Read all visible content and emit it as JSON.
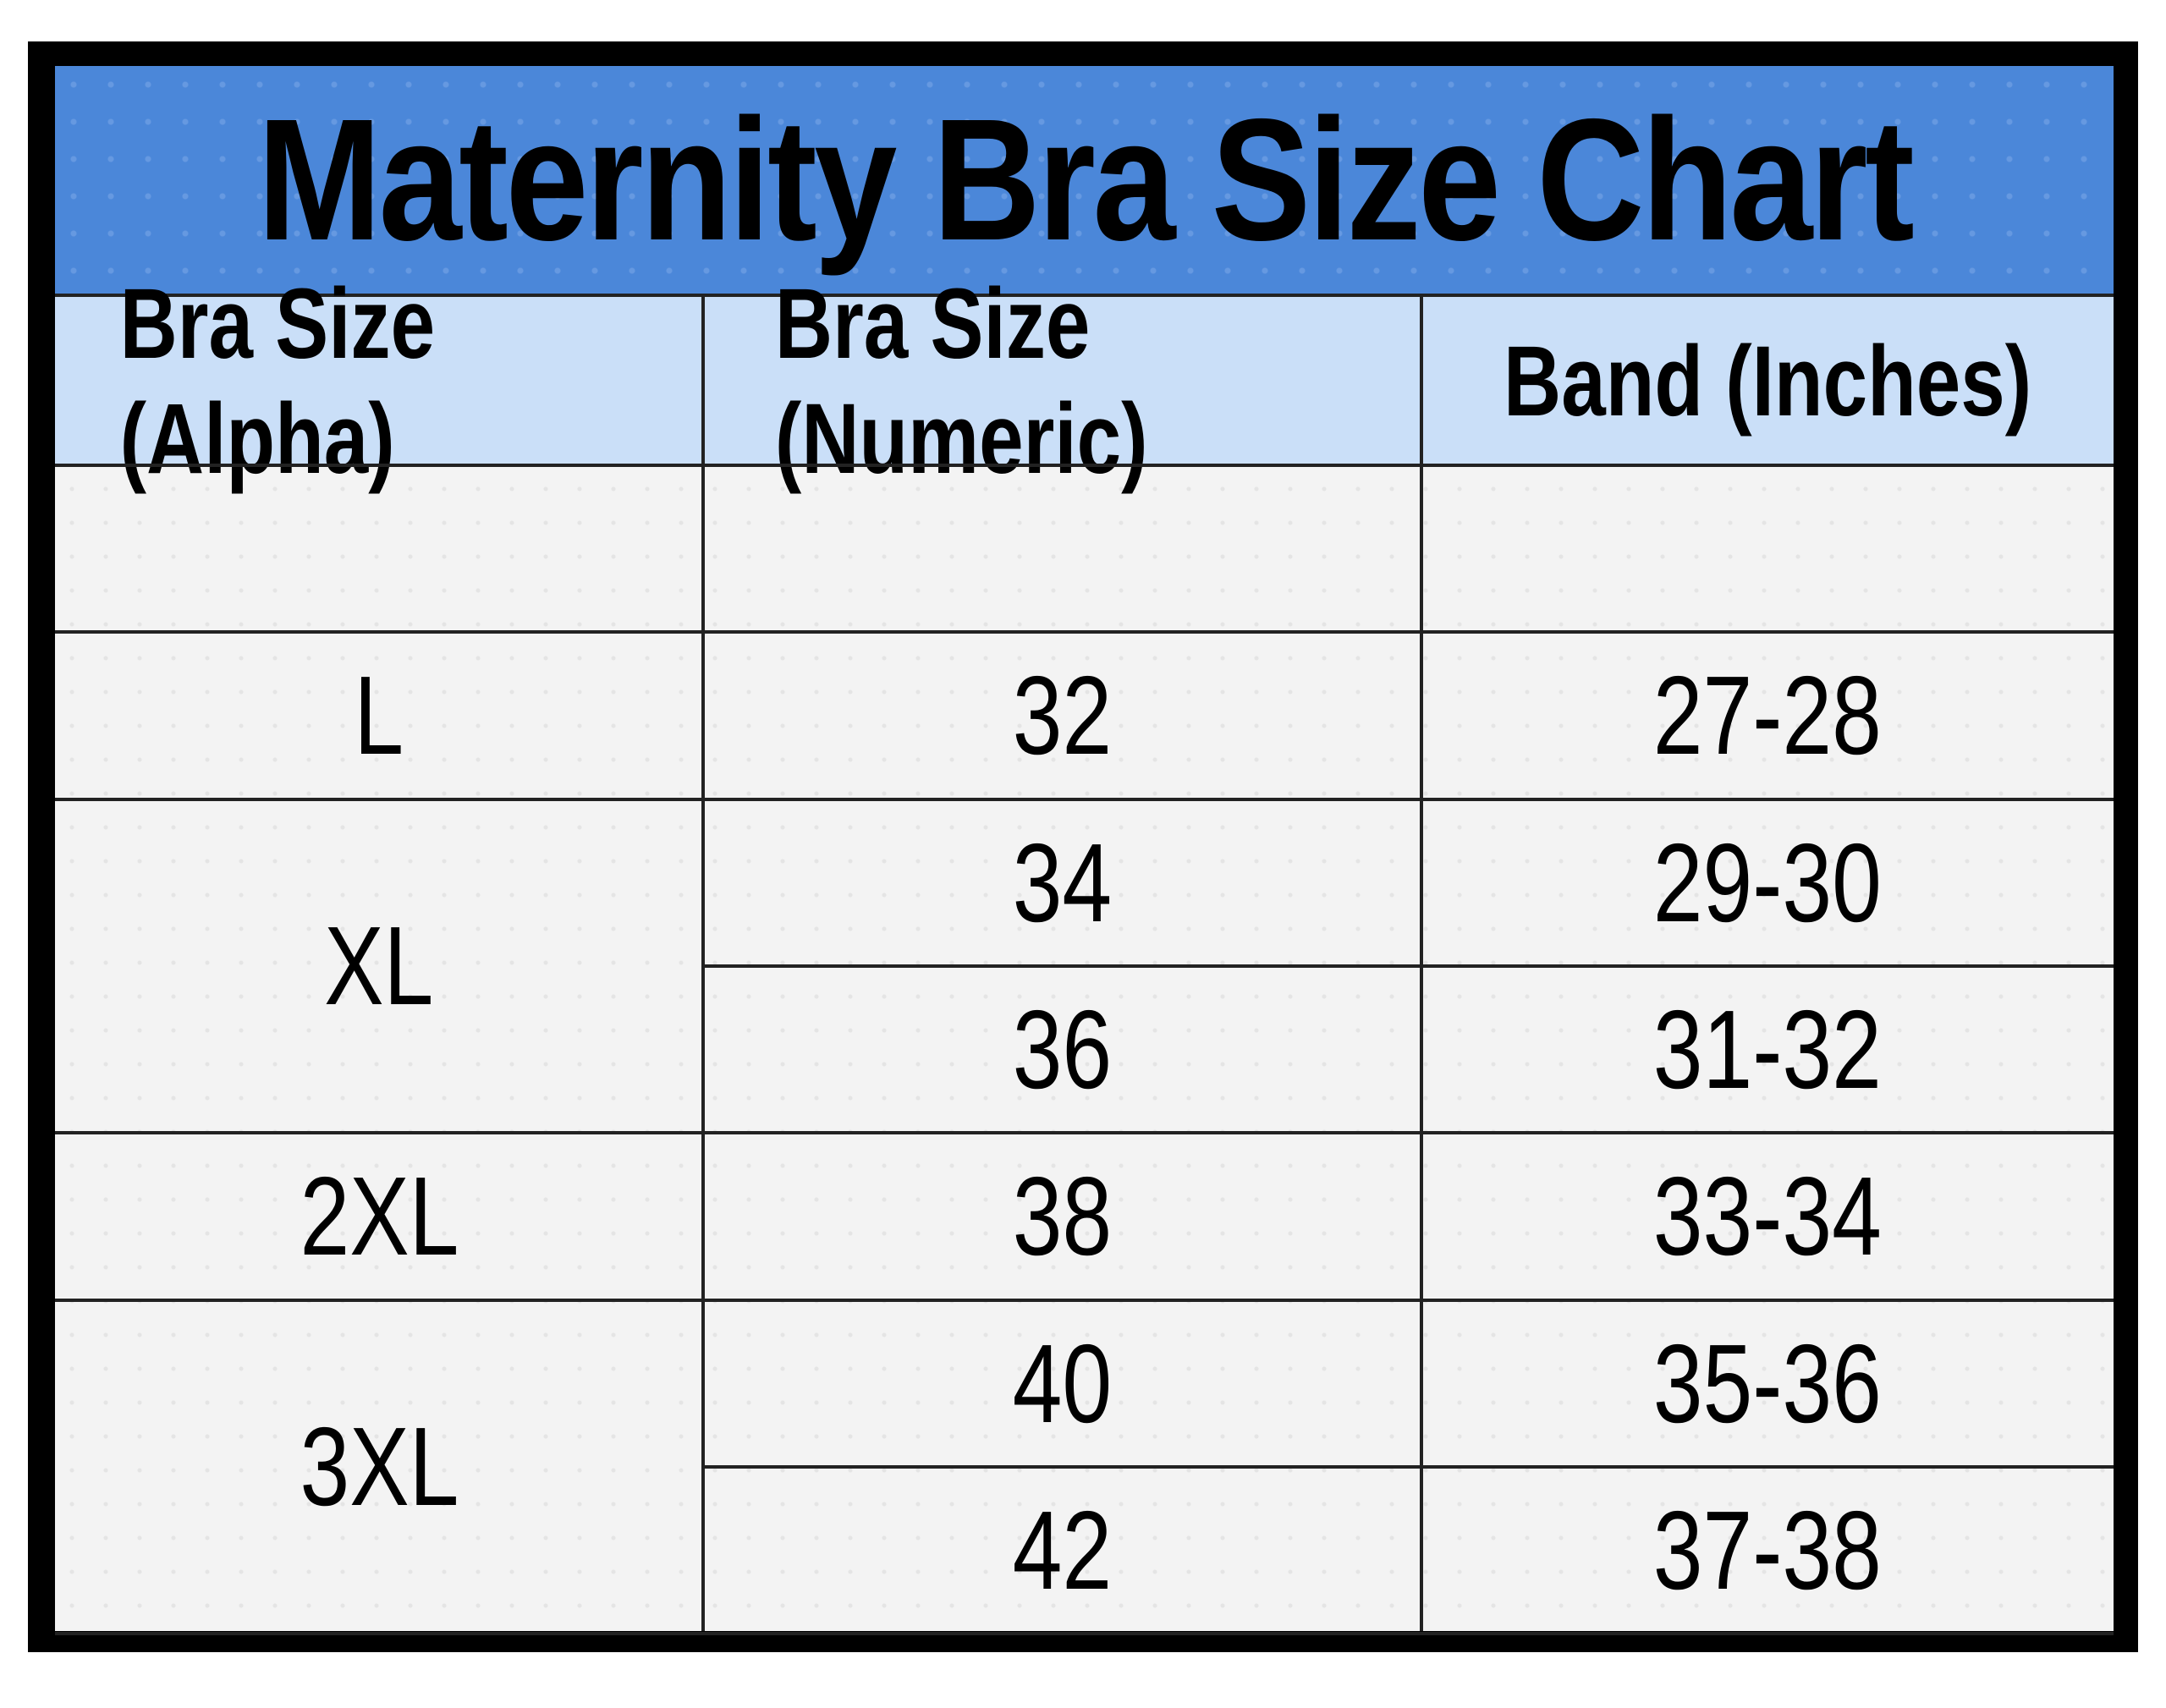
{
  "header": {
    "title": "Maternity Bra Size Chart"
  },
  "table": {
    "columns": [
      "Bra Size (Alpha)",
      "Bra Size (Numeric)",
      "Band (Inches)"
    ],
    "groups": [
      {
        "alpha": "L",
        "rows": [
          {
            "numeric": "32",
            "band": "27-28"
          }
        ]
      },
      {
        "alpha": "XL",
        "rows": [
          {
            "numeric": "34",
            "band": "29-30"
          },
          {
            "numeric": "36",
            "band": "31-32"
          }
        ]
      },
      {
        "alpha": "2XL",
        "rows": [
          {
            "numeric": "38",
            "band": "33-34"
          }
        ]
      },
      {
        "alpha": "3XL",
        "rows": [
          {
            "numeric": "40",
            "band": "35-36"
          },
          {
            "numeric": "42",
            "band": "37-38"
          }
        ]
      }
    ]
  }
}
